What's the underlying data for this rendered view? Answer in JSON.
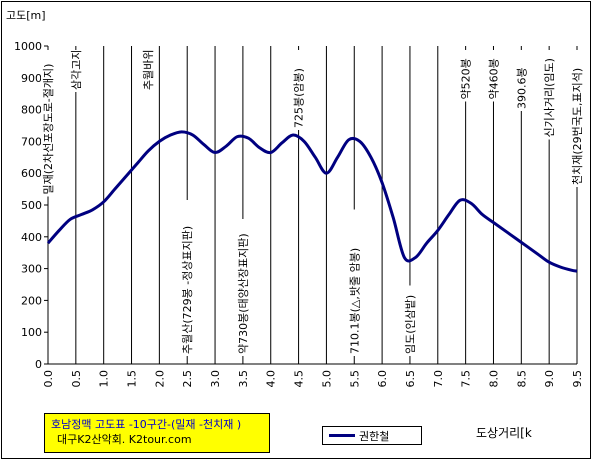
{
  "chart_data": {
    "type": "line",
    "title": "호남정맥 고도표 -10구간-(밀재 -천치재 )",
    "subtitle": "대구K2산악회. K2tour.com",
    "xlabel": "도상거리[k",
    "ylabel": "고도[m]",
    "xlim": [
      0,
      9.5
    ],
    "ylim": [
      0,
      1000
    ],
    "x_ticks": [
      "0.0",
      "0.5",
      "1.0",
      "1.5",
      "2.0",
      "2.5",
      "3.0",
      "3.5",
      "4.0",
      "4.5",
      "5.0",
      "5.5",
      "6.0",
      "6.5",
      "7.0",
      "7.5",
      "8.0",
      "8.5",
      "9.0",
      "9.5"
    ],
    "y_ticks": [
      "0",
      "100",
      "200",
      "300",
      "400",
      "500",
      "600",
      "700",
      "800",
      "900",
      "1000"
    ],
    "grid": {
      "vertical": true,
      "horizontal": false
    },
    "legend_position": "bottom-center",
    "series": [
      {
        "name": "권한철",
        "color": "#000080",
        "x": [
          0.0,
          0.2,
          0.4,
          0.6,
          0.8,
          1.0,
          1.2,
          1.4,
          1.6,
          1.8,
          2.0,
          2.2,
          2.4,
          2.6,
          2.8,
          3.0,
          3.2,
          3.4,
          3.6,
          3.8,
          4.0,
          4.2,
          4.4,
          4.6,
          4.8,
          5.0,
          5.2,
          5.4,
          5.6,
          5.8,
          6.0,
          6.2,
          6.4,
          6.6,
          6.8,
          7.0,
          7.2,
          7.4,
          7.6,
          7.8,
          8.0,
          8.2,
          8.4,
          8.6,
          8.8,
          9.0,
          9.2,
          9.4,
          9.5
        ],
        "y": [
          380,
          420,
          455,
          470,
          485,
          510,
          550,
          590,
          630,
          670,
          700,
          720,
          730,
          720,
          690,
          665,
          685,
          715,
          710,
          680,
          665,
          695,
          720,
          700,
          650,
          600,
          650,
          705,
          700,
          650,
          570,
          460,
          335,
          335,
          380,
          420,
          470,
          515,
          505,
          470,
          445,
          420,
          395,
          370,
          345,
          320,
          305,
          295,
          292
        ]
      }
    ],
    "annotations": [
      {
        "text": "밀재(2차선포장도로-절개지)",
        "x": 0.0,
        "anchor": "top"
      },
      {
        "text": "삼각고지",
        "x": 0.5,
        "anchor": "top"
      },
      {
        "text": "추월바위",
        "x": 1.8,
        "anchor": "top"
      },
      {
        "text": "추월산(729봉 -정상표지판)",
        "x": 2.5,
        "anchor": "bottom"
      },
      {
        "text": "약730봉(태양산장표지판)",
        "x": 3.5,
        "anchor": "bottom"
      },
      {
        "text": "725봉(암봉)",
        "x": 4.5,
        "anchor": "top"
      },
      {
        "text": "710.1봉(△,밧줄 암봉)",
        "x": 5.5,
        "anchor": "bottom"
      },
      {
        "text": "임도(인삼밭)",
        "x": 6.5,
        "anchor": "bottom"
      },
      {
        "text": "약520봉",
        "x": 7.5,
        "anchor": "top"
      },
      {
        "text": "약460봉",
        "x": 8.0,
        "anchor": "top"
      },
      {
        "text": "390.6봉",
        "x": 8.5,
        "anchor": "top"
      },
      {
        "text": "신기사거리(임도)",
        "x": 9.0,
        "anchor": "top"
      },
      {
        "text": "천치재(29번국도,표지석)",
        "x": 9.5,
        "anchor": "top"
      }
    ]
  }
}
